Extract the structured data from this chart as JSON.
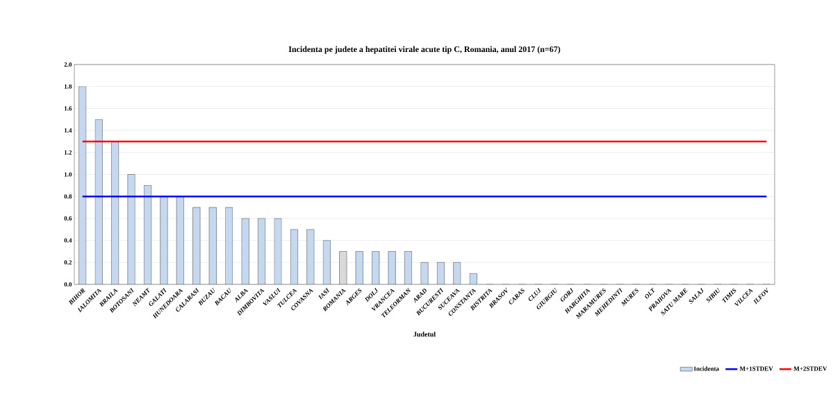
{
  "chart_data": {
    "type": "bar",
    "title": "Incidenta pe judete a hepatitei virale acute tip C, Romania, anul 2017 (n=67)",
    "xlabel": "Judetul",
    "categories": [
      "BIHOR",
      "IALOMITA",
      "BRAILA",
      "BOTOSANI",
      "NEAMT",
      "GALATI",
      "HUNEDOARA",
      "CALARASI",
      "BUZAU",
      "BACAU",
      "ALBA",
      "DIMBOVITA",
      "VASLUI",
      "TULCEA",
      "COVASNA",
      "IASI",
      "ROMANIA",
      "ARGES",
      "DOLJ",
      "VRANCEA",
      "TELEORMAN",
      "ARAD",
      "BUCURESTI",
      "SUCEAVA",
      "CONSTANTA",
      "BISTRITA",
      "BRASOV",
      "CARAS",
      "CLUJ",
      "GIURGIU",
      "GORJ",
      "HARGHITA",
      "MARAMURES",
      "MEHEDINTI",
      "MURES",
      "OLT",
      "PRAHOVA",
      "SATU MARE",
      "SALAJ",
      "SIBIU",
      "TIMIS",
      "VILCEA",
      "ILFOV"
    ],
    "series": [
      {
        "name": "Incidenta",
        "color": "#c6d7f0",
        "colors": [
          "#c6d7f0",
          "#c6d7f0",
          "#c6d7f0",
          "#c6d7f0",
          "#c6d7f0",
          "#c6d7f0",
          "#c6d7f0",
          "#c6d7f0",
          "#c6d7f0",
          "#c6d7f0",
          "#c6d7f0",
          "#c6d7f0",
          "#c6d7f0",
          "#c6d7f0",
          "#c6d7f0",
          "#c6d7f0",
          "#d9d9d9",
          "#c6d7f0",
          "#c6d7f0",
          "#c6d7f0",
          "#c6d7f0",
          "#c6d7f0",
          "#c6d7f0",
          "#c6d7f0",
          "#c6d7f0",
          "#c6d7f0",
          "#c6d7f0",
          "#c6d7f0",
          "#c6d7f0",
          "#c6d7f0",
          "#c6d7f0",
          "#c6d7f0",
          "#c6d7f0",
          "#c6d7f0",
          "#c6d7f0",
          "#c6d7f0",
          "#c6d7f0",
          "#c6d7f0",
          "#c6d7f0",
          "#c6d7f0",
          "#c6d7f0",
          "#c6d7f0",
          "#c6d7f0"
        ],
        "values": [
          1.8,
          1.5,
          1.3,
          1.0,
          0.9,
          0.8,
          0.8,
          0.7,
          0.7,
          0.7,
          0.6,
          0.6,
          0.6,
          0.5,
          0.5,
          0.4,
          0.3,
          0.3,
          0.3,
          0.3,
          0.3,
          0.2,
          0.2,
          0.2,
          0.1,
          0,
          0,
          0,
          0,
          0,
          0,
          0,
          0,
          0,
          0,
          0,
          0,
          0,
          0,
          0,
          0,
          0,
          0
        ]
      },
      {
        "name": "M+1STDEV",
        "type": "line",
        "color": "#0000ff",
        "values": [
          0.8,
          0.8,
          0.8,
          0.8,
          0.8,
          0.8,
          0.8,
          0.8,
          0.8,
          0.8,
          0.8,
          0.8,
          0.8,
          0.8,
          0.8,
          0.8,
          0.8,
          0.8,
          0.8,
          0.8,
          0.8,
          0.8,
          0.8,
          0.8,
          0.8,
          0.8,
          0.8,
          0.8,
          0.8,
          0.8,
          0.8,
          0.8,
          0.8,
          0.8,
          0.8,
          0.8,
          0.8,
          0.8,
          0.8,
          0.8,
          0.8,
          0.8,
          0.8
        ]
      },
      {
        "name": "M+2STDEV",
        "type": "line",
        "color": "#ff0000",
        "values": [
          1.3,
          1.3,
          1.3,
          1.3,
          1.3,
          1.3,
          1.3,
          1.3,
          1.3,
          1.3,
          1.3,
          1.3,
          1.3,
          1.3,
          1.3,
          1.3,
          1.3,
          1.3,
          1.3,
          1.3,
          1.3,
          1.3,
          1.3,
          1.3,
          1.3,
          1.3,
          1.3,
          1.3,
          1.3,
          1.3,
          1.3,
          1.3,
          1.3,
          1.3,
          1.3,
          1.3,
          1.3,
          1.3,
          1.3,
          1.3,
          1.3,
          1.3,
          1.3
        ]
      }
    ],
    "ylim": [
      0,
      2.0
    ],
    "yticks": [
      {
        "value": 0,
        "label": "0.0"
      },
      {
        "value": 0.2,
        "label": "0.2"
      },
      {
        "value": 0.4,
        "label": "0.4"
      },
      {
        "value": 0.6,
        "label": "0.6"
      },
      {
        "value": 0.8,
        "label": "0.8"
      },
      {
        "value": 1.0,
        "label": "1.0"
      },
      {
        "value": 1.2,
        "label": "1.2"
      },
      {
        "value": 1.4,
        "label": "1.4"
      },
      {
        "value": 1.6,
        "label": "1.6"
      },
      {
        "value": 1.8,
        "label": "1.8"
      },
      {
        "value": 2.0,
        "label": "2.0"
      }
    ],
    "grid": "y",
    "legend": "bottom right"
  }
}
